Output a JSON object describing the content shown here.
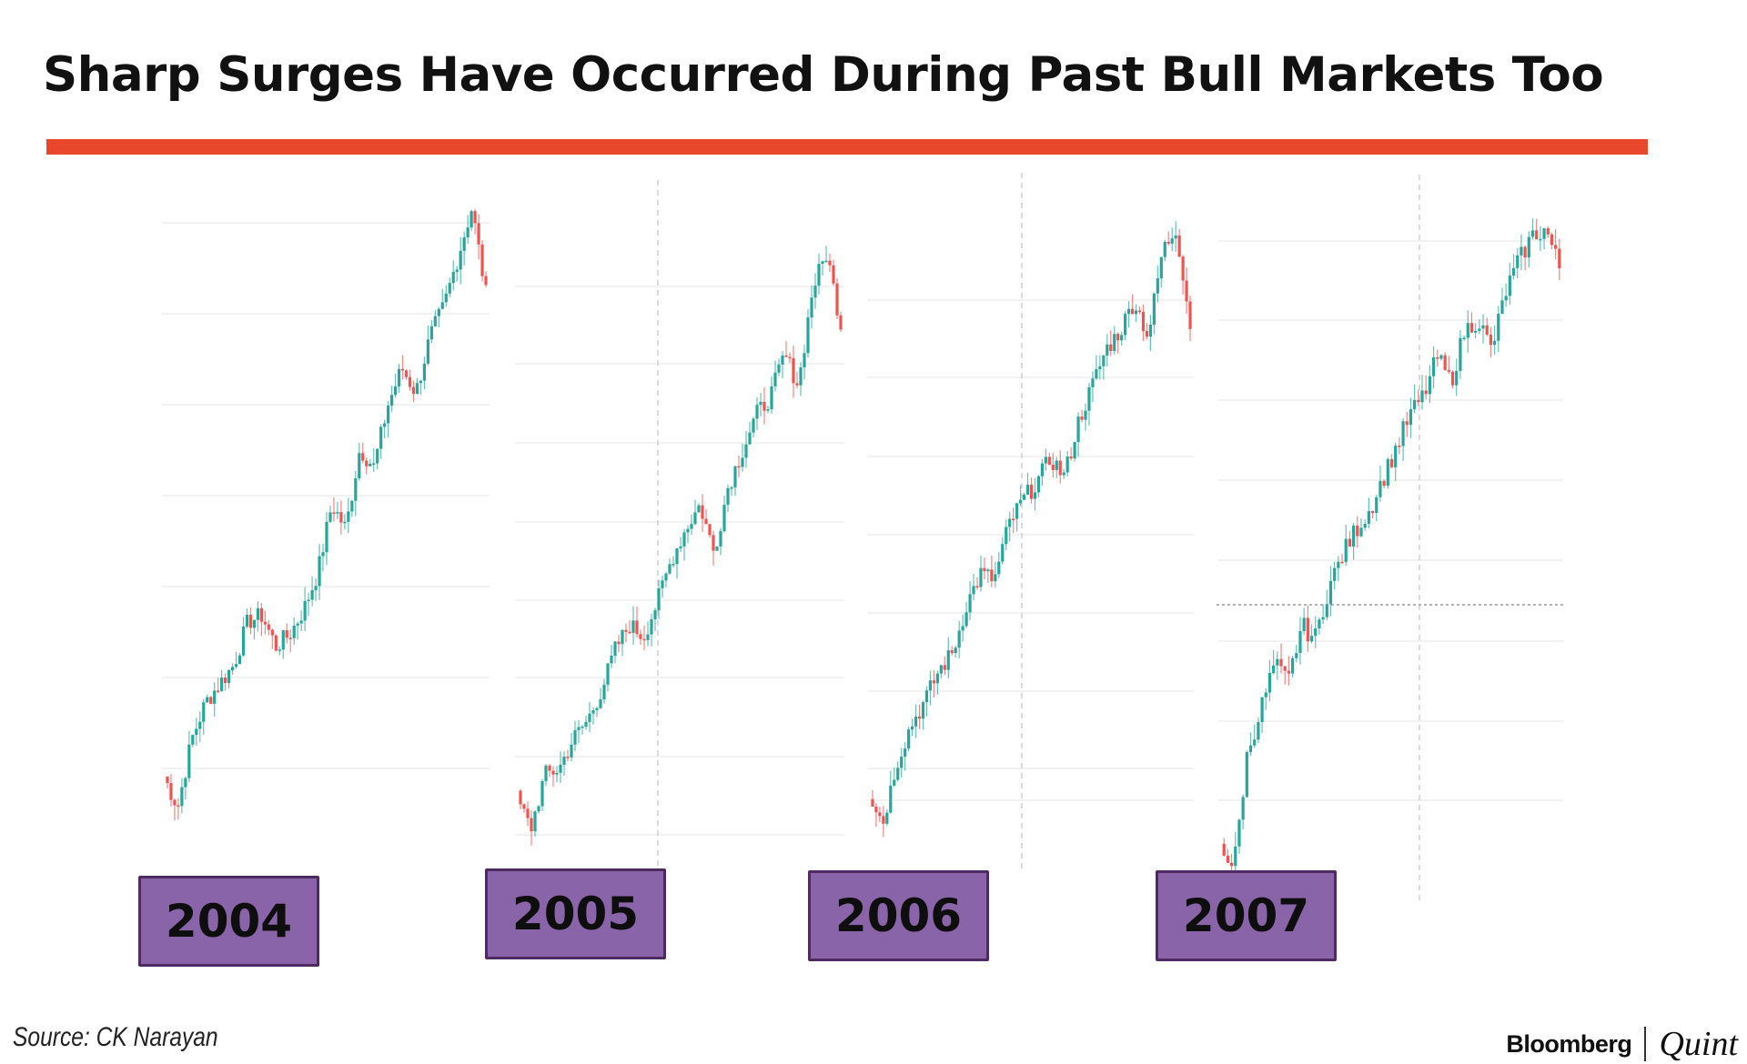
{
  "title": "Sharp Surges Have Occurred During Past Bull Markets Too",
  "source": "Source: CK Narayan",
  "brand": {
    "left": "Bloomberg",
    "right": "Quint"
  },
  "colors": {
    "title_rule": "#e8472b",
    "label_box": "#8a64a8",
    "label_border": "#4f2a62",
    "up_candle": "#26a69a",
    "down_candle": "#ef5350",
    "grid": "#eeeeee"
  },
  "chart_data": [
    {
      "type": "line",
      "label": "2004",
      "series": [
        {
          "values": [
            8,
            3,
            14,
            20,
            23,
            26,
            33,
            34,
            29,
            31,
            35,
            41,
            52,
            48,
            61,
            58,
            68,
            74,
            70,
            79,
            84,
            92,
            100,
            86
          ]
        }
      ]
    },
    {
      "type": "line",
      "label": "2005",
      "series": [
        {
          "values": [
            6,
            1,
            10,
            11,
            16,
            19,
            24,
            31,
            35,
            33,
            39,
            46,
            51,
            55,
            47,
            58,
            64,
            70,
            73,
            80,
            75,
            91,
            97,
            85
          ]
        }
      ]
    },
    {
      "type": "line",
      "label": "2006",
      "series": [
        {
          "values": [
            7,
            2,
            12,
            18,
            22,
            27,
            30,
            38,
            43,
            42,
            51,
            55,
            58,
            62,
            59,
            68,
            74,
            80,
            83,
            88,
            82,
            96,
            100,
            84
          ]
        }
      ]
    },
    {
      "type": "line",
      "label": "2007",
      "series": [
        {
          "values": [
            4,
            0,
            18,
            25,
            32,
            29,
            38,
            36,
            44,
            49,
            53,
            56,
            61,
            66,
            71,
            74,
            80,
            76,
            84,
            86,
            81,
            90,
            95,
            99,
            100,
            94
          ]
        }
      ]
    }
  ]
}
